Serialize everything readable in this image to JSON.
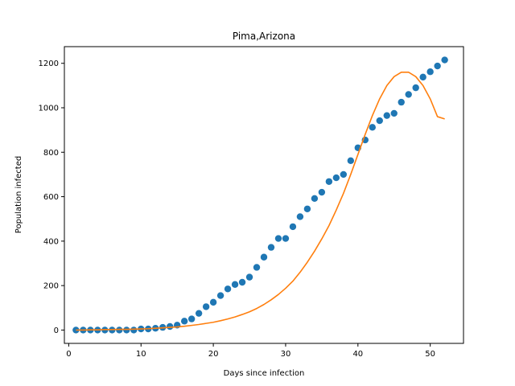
{
  "chart_data": {
    "type": "scatter",
    "title": "Pima,Arizona",
    "xlabel": "Days since infection",
    "ylabel": "Population infected",
    "xlim": [
      -0.6,
      54.6
    ],
    "ylim": [
      -60,
      1275
    ],
    "xticks": [
      0,
      10,
      20,
      30,
      40,
      50
    ],
    "yticks": [
      0,
      200,
      400,
      600,
      800,
      1000,
      1200
    ],
    "grid": false,
    "legend": "none",
    "series": [
      {
        "type": "scatter",
        "color": "#1f77b4",
        "x": [
          1,
          2,
          3,
          4,
          5,
          6,
          7,
          8,
          9,
          10,
          11,
          12,
          13,
          14,
          15,
          16,
          17,
          18,
          19,
          20,
          21,
          22,
          23,
          24,
          25,
          26,
          27,
          28,
          29,
          30,
          31,
          32,
          33,
          34,
          35,
          36,
          37,
          38,
          39,
          40,
          41,
          42,
          43,
          44,
          45,
          46,
          47,
          48,
          49,
          50,
          51,
          52
        ],
        "y": [
          0,
          0,
          0,
          0,
          0,
          0,
          0,
          0,
          0,
          5,
          5,
          8,
          12,
          16,
          22,
          40,
          50,
          75,
          105,
          125,
          155,
          185,
          205,
          215,
          238,
          282,
          328,
          372,
          412,
          412,
          465,
          510,
          545,
          592,
          620,
          668,
          685,
          700,
          762,
          820,
          855,
          912,
          942,
          965,
          975,
          1025,
          1060,
          1090,
          1138,
          1162,
          1188,
          1215
        ]
      },
      {
        "type": "line",
        "color": "#ff7f0e",
        "x": [
          1,
          2,
          3,
          4,
          5,
          6,
          7,
          8,
          9,
          10,
          11,
          12,
          13,
          14,
          15,
          16,
          17,
          18,
          19,
          20,
          21,
          22,
          23,
          24,
          25,
          26,
          27,
          28,
          29,
          30,
          31,
          32,
          33,
          34,
          35,
          36,
          37,
          38,
          39,
          40,
          41,
          42,
          43,
          44,
          45,
          46,
          47,
          48,
          49,
          50,
          51,
          52
        ],
        "y": [
          0,
          0,
          1,
          1,
          2,
          2,
          3,
          3,
          4,
          5,
          6,
          8,
          10,
          12,
          14,
          17,
          21,
          25,
          30,
          35,
          42,
          50,
          59,
          70,
          82,
          97,
          115,
          136,
          160,
          188,
          220,
          260,
          305,
          355,
          410,
          470,
          540,
          615,
          700,
          790,
          880,
          965,
          1040,
          1100,
          1140,
          1160,
          1160,
          1140,
          1100,
          1040,
          960,
          950
        ]
      }
    ]
  }
}
